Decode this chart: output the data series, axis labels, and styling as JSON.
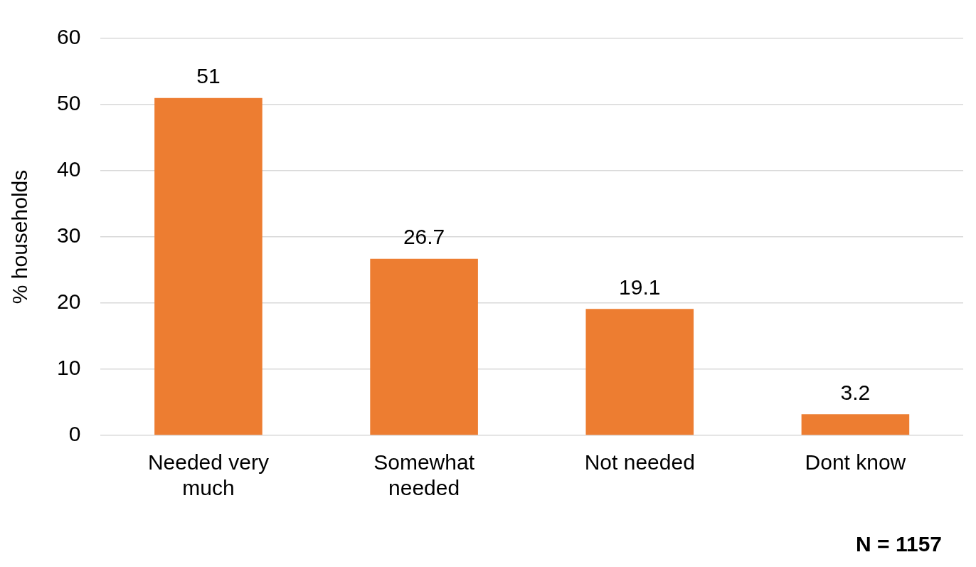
{
  "chart_data": {
    "type": "bar",
    "ylabel": "% households",
    "categories": [
      "Needed very much",
      "Somewhat needed",
      "Not needed",
      "Dont know"
    ],
    "values": [
      51,
      26.7,
      19.1,
      3.2
    ],
    "color": "#ed7d31",
    "ylim": [
      0,
      60
    ],
    "yticks": [
      0,
      10,
      20,
      30,
      40,
      50,
      60
    ],
    "grid": "y",
    "data_labels": true,
    "legend": false,
    "annotations": [
      "N = 1157"
    ]
  }
}
